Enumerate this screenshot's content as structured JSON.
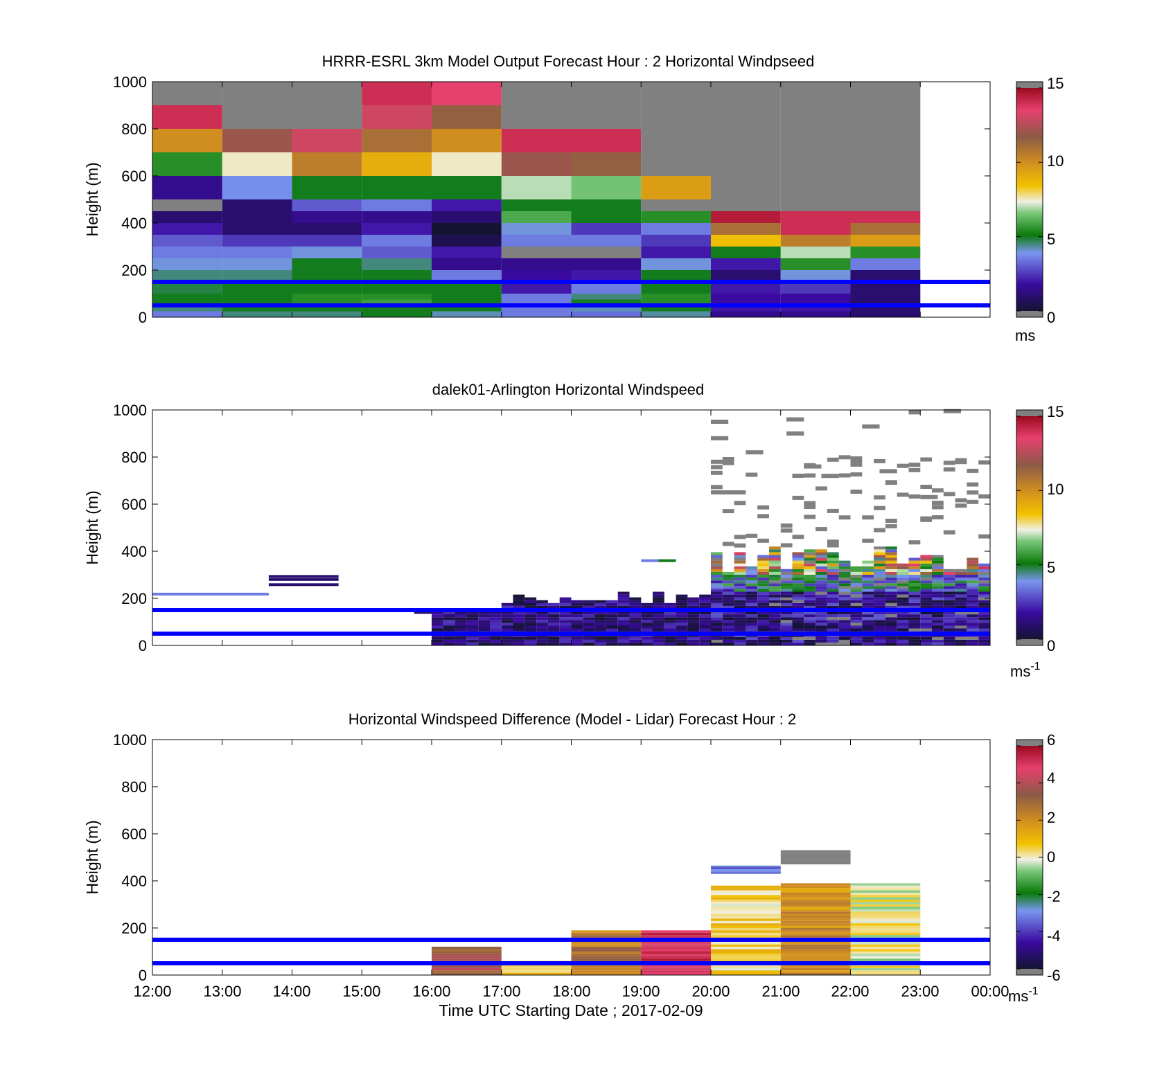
{
  "panels": [
    {
      "title": "HRRR-ESRL 3km Model Output   Forecast Hour : 2 Horizontal Windpseed",
      "ylabel": "Height (m)",
      "yticks": [
        "0",
        "200",
        "400",
        "600",
        "800",
        "1000"
      ],
      "colorbar": {
        "ticks": [
          "0",
          "5",
          "10",
          "15"
        ],
        "min": 0,
        "max": 15,
        "unit": "ms",
        "unit_sup": ""
      }
    },
    {
      "title": "dalek01-Arlington  Horizontal Windspeed",
      "ylabel": "Height (m)",
      "yticks": [
        "0",
        "200",
        "400",
        "600",
        "800",
        "1000"
      ],
      "colorbar": {
        "ticks": [
          "0",
          "5",
          "10",
          "15"
        ],
        "min": 0,
        "max": 15,
        "unit": "ms",
        "unit_sup": "-1"
      }
    },
    {
      "title": "Horizontal Windspeed Difference (Model - Lidar) Forecast Hour : 2",
      "ylabel": "Height (m)",
      "yticks": [
        "0",
        "200",
        "400",
        "600",
        "800",
        "1000"
      ],
      "colorbar": {
        "ticks": [
          "-6",
          "-4",
          "-2",
          "0",
          "2",
          "4",
          "6"
        ],
        "min": -6,
        "max": 6,
        "unit": "ms",
        "unit_sup": "-1"
      }
    }
  ],
  "xticks": [
    "12:00",
    "13:00",
    "14:00",
    "15:00",
    "16:00",
    "17:00",
    "18:00",
    "19:00",
    "20:00",
    "21:00",
    "22:00",
    "23:00",
    "00:00"
  ],
  "xlabel": "Time UTC  Starting Date ; 2017-02-09",
  "colors": {
    "reference_lines": "#0000ff",
    "missing": "#808080",
    "colormap": [
      "#141432",
      "#3a0aa0",
      "#7a96f0",
      "#0a7a0a",
      "#f0f0e6",
      "#f2c200",
      "#8c5a46",
      "#e6406e",
      "#9b0a1e"
    ]
  },
  "chart_data": [
    {
      "type": "heatmap",
      "title": "HRRR-ESRL 3km Model Output   Forecast Hour : 2 Horizontal Windpseed",
      "ylabel": "Height (m)",
      "xlabel": "Time UTC  Starting Date ; 2017-02-09",
      "x_range": [
        "12:00",
        "00:00"
      ],
      "ylim": [
        0,
        1000
      ],
      "clim": [
        0,
        15
      ],
      "colorbar_unit": "ms",
      "reference_lines_height_m": [
        50,
        150
      ],
      "grid": false,
      "hours_start": [
        "12:00",
        "13:00",
        "14:00",
        "15:00",
        "16:00",
        "17:00",
        "18:00",
        "19:00",
        "20:00",
        "21:00",
        "22:00"
      ],
      "level_bounds_m": [
        0,
        25,
        50,
        75,
        100,
        150,
        200,
        250,
        300,
        350,
        400,
        450,
        500,
        600,
        700,
        800,
        900,
        1000
      ],
      "values_ms": [
        [
          3.5,
          4.5,
          4.5,
          5.0,
          4.2,
          3.5,
          3.3,
          4.3,
          1.5,
          1.5,
          1.0
        ],
        [
          4.5,
          5.0,
          5.0,
          5.0,
          5.0,
          3.5,
          4.2,
          5.0,
          2.0,
          2.0,
          1.0
        ],
        [
          5.0,
          5.0,
          5.5,
          5.8,
          5.0,
          3.5,
          5.0,
          5.5,
          1.8,
          1.8,
          1.0
        ],
        [
          5.0,
          5.0,
          5.5,
          5.5,
          5.0,
          3.5,
          4.5,
          5.5,
          1.8,
          1.8,
          1.0
        ],
        [
          4.8,
          5.0,
          5.0,
          5.0,
          5.0,
          2.0,
          3.5,
          5.0,
          2.0,
          2.5,
          1.0
        ],
        [
          4.5,
          4.5,
          5.0,
          5.0,
          3.5,
          1.8,
          2.0,
          5.0,
          1.0,
          4.0,
          1.0
        ],
        [
          4.0,
          4.0,
          5.0,
          4.5,
          1.5,
          1.5,
          1.5,
          4.0,
          2.0,
          5.5,
          3.5
        ],
        [
          3.5,
          3.5,
          4.0,
          3.0,
          2.0,
          null,
          null,
          2.0,
          5.0,
          7.0,
          5.5
        ],
        [
          3.0,
          2.5,
          2.5,
          3.5,
          0.5,
          3.5,
          3.5,
          2.5,
          8.5,
          10.5,
          9.5
        ],
        [
          2.0,
          1.0,
          1.0,
          2.0,
          0.0,
          4.0,
          2.5,
          3.5,
          11.0,
          14.0,
          11.0
        ],
        [
          1.0,
          1.0,
          1.5,
          1.5,
          1.0,
          6.0,
          5.0,
          5.5,
          14.5,
          14.0,
          14.0
        ],
        [
          null,
          1.0,
          3.0,
          3.5,
          2.0,
          5.0,
          5.0,
          null,
          null,
          null,
          null
        ],
        [
          1.5,
          3.8,
          5.0,
          5.0,
          5.0,
          7.0,
          6.5,
          9.5,
          null,
          null,
          null
        ],
        [
          5.5,
          7.5,
          10.5,
          9.0,
          7.5,
          12.0,
          11.5,
          null,
          null,
          null,
          null
        ],
        [
          10.0,
          12.0,
          13.0,
          11.0,
          10.0,
          14.0,
          14.0,
          null,
          null,
          null,
          null
        ],
        [
          14.0,
          null,
          null,
          13.0,
          11.5,
          null,
          null,
          null,
          null,
          null,
          null
        ],
        [
          null,
          null,
          null,
          14.0,
          13.5,
          null,
          null,
          null,
          null,
          null,
          null
        ]
      ]
    },
    {
      "type": "heatmap",
      "title": "dalek01-Arlington  Horizontal Windspeed",
      "ylabel": "Height (m)",
      "xlabel": "Time UTC  Starting Date ; 2017-02-09",
      "x_range": [
        "12:00",
        "00:00"
      ],
      "ylim": [
        0,
        1000
      ],
      "clim": [
        0,
        15
      ],
      "colorbar_unit": "ms-1",
      "reference_lines_height_m": [
        50,
        150
      ],
      "grid": false,
      "sparse_segments": [
        {
          "start": "12:00",
          "end": "13:40",
          "height_m": 218,
          "speed_ms": 3.5
        },
        {
          "start": "13:40",
          "end": "14:40",
          "height_m": 293,
          "speed_ms": 1.0
        },
        {
          "start": "13:40",
          "end": "14:40",
          "height_m": 280,
          "speed_ms": 1.0
        },
        {
          "start": "13:40",
          "end": "14:40",
          "height_m": 258,
          "speed_ms": 1.0
        },
        {
          "start": "15:45",
          "end": "16:10",
          "height_m": 140,
          "speed_ms": 1.0
        },
        {
          "start": "16:10",
          "end": "16:30",
          "height_m": 130,
          "speed_ms": 1.0
        },
        {
          "start": "17:10",
          "end": "17:35",
          "height_m": 176,
          "speed_ms": 1.5
        },
        {
          "start": "19:00",
          "end": "19:15",
          "height_m": 360,
          "speed_ms": 3.5
        },
        {
          "start": "19:15",
          "end": "19:30",
          "height_m": 360,
          "speed_ms": 5.0
        }
      ],
      "profiles_10min": {
        "time_start": "16:00",
        "time_end": "23:50",
        "level_bounds_m": [
          0,
          30,
          60,
          100,
          150,
          200,
          250,
          300,
          350,
          400
        ],
        "summary": "Mostly 0-3 m/s below 300 m from 16:00-20:00; 3-6 m/s with 8-14 m/s maxima between 300-450 m after 20:00; missing values (grey) scattered up to 1000 m after 20:00"
      },
      "missing_upper_segments": [
        {
          "start": "20:00",
          "end": "20:15",
          "height_m": 950
        },
        {
          "start": "20:00",
          "end": "20:15",
          "height_m": 880
        },
        {
          "start": "20:00",
          "end": "20:15",
          "height_m": 780
        },
        {
          "start": "20:00",
          "end": "20:30",
          "height_m": 650
        },
        {
          "start": "20:30",
          "end": "20:45",
          "height_m": 820
        },
        {
          "start": "21:05",
          "end": "21:20",
          "height_m": 960
        },
        {
          "start": "21:05",
          "end": "21:20",
          "height_m": 900
        },
        {
          "start": "21:20",
          "end": "21:35",
          "height_m": 760
        },
        {
          "start": "21:35",
          "end": "21:50",
          "height_m": 720
        },
        {
          "start": "22:10",
          "end": "22:25",
          "height_m": 930
        },
        {
          "start": "22:25",
          "end": "22:40",
          "height_m": 740
        },
        {
          "start": "22:50",
          "end": "23:00",
          "height_m": 990
        },
        {
          "start": "23:00",
          "end": "23:15",
          "height_m": 630
        },
        {
          "start": "23:20",
          "end": "23:35",
          "height_m": 995
        }
      ]
    },
    {
      "type": "heatmap",
      "title": "Horizontal Windspeed Difference (Model - Lidar) Forecast Hour : 2",
      "ylabel": "Height (m)",
      "xlabel": "Time UTC  Starting Date ; 2017-02-09",
      "x_range": [
        "12:00",
        "00:00"
      ],
      "ylim": [
        0,
        1000
      ],
      "clim": [
        -6,
        6
      ],
      "colorbar_unit": "ms-1",
      "reference_lines_height_m": [
        50,
        150
      ],
      "grid": false,
      "blocks": [
        {
          "start": "16:00",
          "end": "17:00",
          "height_min_m": 0,
          "height_max_m": 120,
          "diff_ms": 3.5
        },
        {
          "start": "17:00",
          "end": "18:00",
          "height_min_m": 0,
          "height_max_m": 60,
          "diff_ms": 1.0
        },
        {
          "start": "18:00",
          "end": "19:00",
          "height_min_m": 0,
          "height_max_m": 190,
          "diff_ms": 2.5
        },
        {
          "start": "19:00",
          "end": "20:00",
          "height_min_m": 0,
          "height_max_m": 190,
          "diff_ms": 5.0
        },
        {
          "start": "20:00",
          "end": "21:00",
          "height_min_m": 0,
          "height_max_m": 380,
          "diff_ms": 0.5
        },
        {
          "start": "20:00",
          "end": "21:00",
          "height_min_m": 430,
          "height_max_m": 465,
          "diff_ms": -3.0
        },
        {
          "start": "21:00",
          "end": "22:00",
          "height_min_m": 0,
          "height_max_m": 390,
          "diff_ms": 2.0
        },
        {
          "start": "21:00",
          "end": "22:00",
          "height_min_m": 470,
          "height_max_m": 530,
          "diff_ms": null
        },
        {
          "start": "22:00",
          "end": "23:00",
          "height_min_m": 0,
          "height_max_m": 390,
          "diff_ms": 0.0
        }
      ]
    }
  ]
}
